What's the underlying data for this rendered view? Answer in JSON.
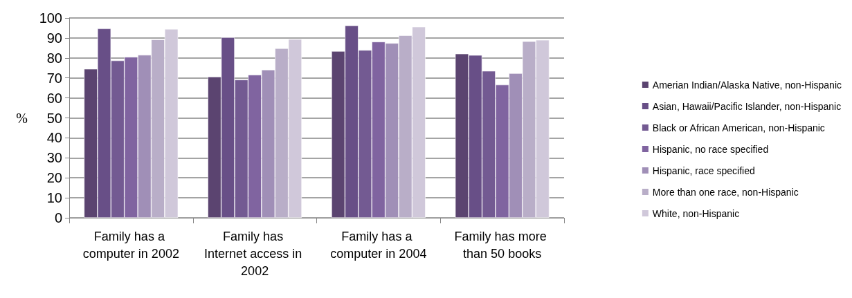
{
  "chart_data": {
    "type": "bar",
    "ylabel": "%",
    "categories": [
      "Family has a computer in 2002",
      "Family has Internet access in 2002",
      "Family has a computer in 2004",
      "Family has more than 50 books"
    ],
    "series": [
      {
        "name": "Amerian Indian/Alaska Native, non-Hispanic",
        "color": "#5b4470",
        "values": [
          74.5,
          70.6,
          83.4,
          82.1
        ]
      },
      {
        "name": "Asian, Hawaii/Pacific Islander, non-Hispanic",
        "color": "#684f87",
        "values": [
          94.7,
          90.3,
          96.2,
          81.4
        ]
      },
      {
        "name": "Black or African American, non-Hispanic",
        "color": "#735a92",
        "values": [
          78.7,
          69.1,
          83.9,
          73.5
        ]
      },
      {
        "name": "Hispanic, no race specified",
        "color": "#8064a0",
        "values": [
          80.5,
          71.6,
          88.1,
          66.6
        ]
      },
      {
        "name": "Hispanic, race specified",
        "color": "#a08fb7",
        "values": [
          81.5,
          74.1,
          87.4,
          72.3
        ]
      },
      {
        "name": "More than one race, non-Hispanic",
        "color": "#b9aec8",
        "values": [
          89.2,
          84.8,
          91.3,
          88.3
        ]
      },
      {
        "name": "White, non-Hispanic",
        "color": "#d0c8da",
        "values": [
          94.5,
          89.4,
          95.6,
          89.0
        ]
      }
    ],
    "ylim": [
      0,
      100
    ],
    "yticks": [
      0,
      10,
      20,
      30,
      40,
      50,
      60,
      70,
      80,
      90,
      100
    ],
    "grid": "y",
    "legend": "right"
  }
}
